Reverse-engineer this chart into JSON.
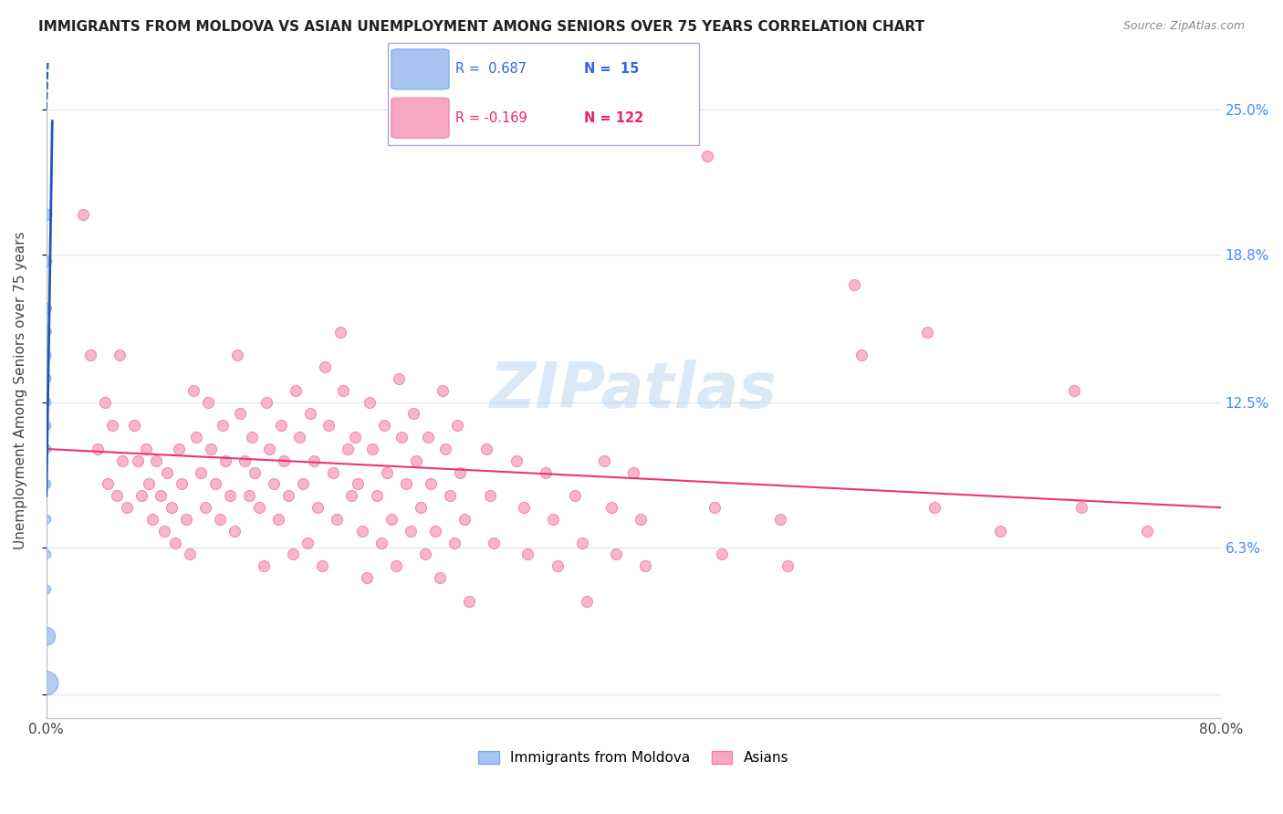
{
  "title": "IMMIGRANTS FROM MOLDOVA VS ASIAN UNEMPLOYMENT AMONG SENIORS OVER 75 YEARS CORRELATION CHART",
  "source": "Source: ZipAtlas.com",
  "ylabel": "Unemployment Among Seniors over 75 years",
  "xlim": [
    0.0,
    0.8
  ],
  "ylim": [
    -0.01,
    0.27
  ],
  "ytick_vals": [
    0.0,
    0.063,
    0.125,
    0.188,
    0.25
  ],
  "ytick_labels": [
    "",
    "6.3%",
    "12.5%",
    "18.8%",
    "25.0%"
  ],
  "blue_color": "#a8c4f0",
  "blue_edge": "#7aaae8",
  "pink_color": "#f9a8c4",
  "pink_edge": "#f080a8",
  "blue_line_color": "#2255bb",
  "pink_line_color": "#ee3377",
  "right_axis_color": "#4488ff",
  "watermark": "ZIPatlas",
  "moldova_scatter": [
    [
      0.0,
      0.205
    ],
    [
      0.0,
      0.185
    ],
    [
      0.0,
      0.165
    ],
    [
      0.0,
      0.155
    ],
    [
      0.0,
      0.145
    ],
    [
      0.0,
      0.135
    ],
    [
      0.0,
      0.125
    ],
    [
      0.0,
      0.115
    ],
    [
      0.0,
      0.105
    ],
    [
      0.0,
      0.09
    ],
    [
      0.0,
      0.075
    ],
    [
      0.0,
      0.06
    ],
    [
      0.0,
      0.045
    ],
    [
      0.0,
      0.025
    ],
    [
      0.0,
      0.005
    ]
  ],
  "moldova_sizes": [
    80,
    70,
    65,
    60,
    55,
    55,
    50,
    50,
    50,
    50,
    50,
    50,
    50,
    200,
    350
  ],
  "asian_scatter": [
    [
      0.025,
      0.205
    ],
    [
      0.03,
      0.145
    ],
    [
      0.035,
      0.105
    ],
    [
      0.04,
      0.125
    ],
    [
      0.042,
      0.09
    ],
    [
      0.045,
      0.115
    ],
    [
      0.048,
      0.085
    ],
    [
      0.05,
      0.145
    ],
    [
      0.052,
      0.1
    ],
    [
      0.055,
      0.08
    ],
    [
      0.06,
      0.115
    ],
    [
      0.062,
      0.1
    ],
    [
      0.065,
      0.085
    ],
    [
      0.068,
      0.105
    ],
    [
      0.07,
      0.09
    ],
    [
      0.072,
      0.075
    ],
    [
      0.075,
      0.1
    ],
    [
      0.078,
      0.085
    ],
    [
      0.08,
      0.07
    ],
    [
      0.082,
      0.095
    ],
    [
      0.085,
      0.08
    ],
    [
      0.088,
      0.065
    ],
    [
      0.09,
      0.105
    ],
    [
      0.092,
      0.09
    ],
    [
      0.095,
      0.075
    ],
    [
      0.098,
      0.06
    ],
    [
      0.1,
      0.13
    ],
    [
      0.102,
      0.11
    ],
    [
      0.105,
      0.095
    ],
    [
      0.108,
      0.08
    ],
    [
      0.11,
      0.125
    ],
    [
      0.112,
      0.105
    ],
    [
      0.115,
      0.09
    ],
    [
      0.118,
      0.075
    ],
    [
      0.12,
      0.115
    ],
    [
      0.122,
      0.1
    ],
    [
      0.125,
      0.085
    ],
    [
      0.128,
      0.07
    ],
    [
      0.13,
      0.145
    ],
    [
      0.132,
      0.12
    ],
    [
      0.135,
      0.1
    ],
    [
      0.138,
      0.085
    ],
    [
      0.14,
      0.11
    ],
    [
      0.142,
      0.095
    ],
    [
      0.145,
      0.08
    ],
    [
      0.148,
      0.055
    ],
    [
      0.15,
      0.125
    ],
    [
      0.152,
      0.105
    ],
    [
      0.155,
      0.09
    ],
    [
      0.158,
      0.075
    ],
    [
      0.16,
      0.115
    ],
    [
      0.162,
      0.1
    ],
    [
      0.165,
      0.085
    ],
    [
      0.168,
      0.06
    ],
    [
      0.17,
      0.13
    ],
    [
      0.172,
      0.11
    ],
    [
      0.175,
      0.09
    ],
    [
      0.178,
      0.065
    ],
    [
      0.18,
      0.12
    ],
    [
      0.182,
      0.1
    ],
    [
      0.185,
      0.08
    ],
    [
      0.188,
      0.055
    ],
    [
      0.19,
      0.14
    ],
    [
      0.192,
      0.115
    ],
    [
      0.195,
      0.095
    ],
    [
      0.198,
      0.075
    ],
    [
      0.2,
      0.155
    ],
    [
      0.202,
      0.13
    ],
    [
      0.205,
      0.105
    ],
    [
      0.208,
      0.085
    ],
    [
      0.21,
      0.11
    ],
    [
      0.212,
      0.09
    ],
    [
      0.215,
      0.07
    ],
    [
      0.218,
      0.05
    ],
    [
      0.22,
      0.125
    ],
    [
      0.222,
      0.105
    ],
    [
      0.225,
      0.085
    ],
    [
      0.228,
      0.065
    ],
    [
      0.23,
      0.115
    ],
    [
      0.232,
      0.095
    ],
    [
      0.235,
      0.075
    ],
    [
      0.238,
      0.055
    ],
    [
      0.24,
      0.135
    ],
    [
      0.242,
      0.11
    ],
    [
      0.245,
      0.09
    ],
    [
      0.248,
      0.07
    ],
    [
      0.25,
      0.12
    ],
    [
      0.252,
      0.1
    ],
    [
      0.255,
      0.08
    ],
    [
      0.258,
      0.06
    ],
    [
      0.26,
      0.11
    ],
    [
      0.262,
      0.09
    ],
    [
      0.265,
      0.07
    ],
    [
      0.268,
      0.05
    ],
    [
      0.27,
      0.13
    ],
    [
      0.272,
      0.105
    ],
    [
      0.275,
      0.085
    ],
    [
      0.278,
      0.065
    ],
    [
      0.28,
      0.115
    ],
    [
      0.282,
      0.095
    ],
    [
      0.285,
      0.075
    ],
    [
      0.288,
      0.04
    ],
    [
      0.3,
      0.105
    ],
    [
      0.302,
      0.085
    ],
    [
      0.305,
      0.065
    ],
    [
      0.32,
      0.1
    ],
    [
      0.325,
      0.08
    ],
    [
      0.328,
      0.06
    ],
    [
      0.34,
      0.095
    ],
    [
      0.345,
      0.075
    ],
    [
      0.348,
      0.055
    ],
    [
      0.36,
      0.085
    ],
    [
      0.365,
      0.065
    ],
    [
      0.368,
      0.04
    ],
    [
      0.38,
      0.1
    ],
    [
      0.385,
      0.08
    ],
    [
      0.388,
      0.06
    ],
    [
      0.4,
      0.095
    ],
    [
      0.405,
      0.075
    ],
    [
      0.408,
      0.055
    ],
    [
      0.45,
      0.23
    ],
    [
      0.455,
      0.08
    ],
    [
      0.46,
      0.06
    ],
    [
      0.5,
      0.075
    ],
    [
      0.505,
      0.055
    ],
    [
      0.55,
      0.175
    ],
    [
      0.555,
      0.145
    ],
    [
      0.6,
      0.155
    ],
    [
      0.605,
      0.08
    ],
    [
      0.65,
      0.07
    ],
    [
      0.7,
      0.13
    ],
    [
      0.705,
      0.08
    ],
    [
      0.75,
      0.07
    ]
  ]
}
